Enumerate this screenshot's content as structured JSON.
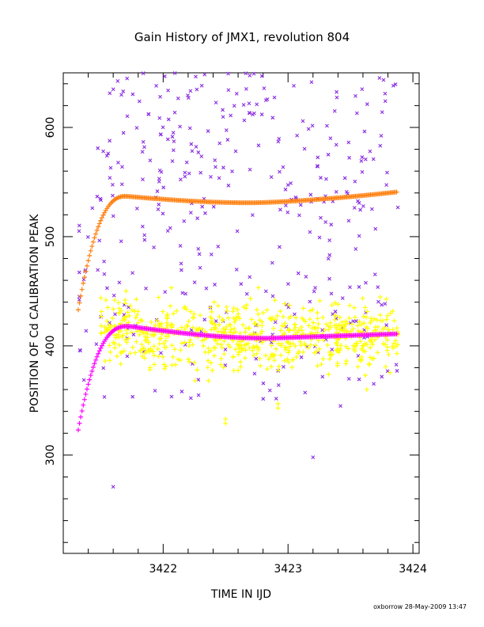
{
  "chart_data": {
    "type": "scatter",
    "title": "Gain History of JMX1, revolution 804",
    "xlabel": "TIME IN IJD",
    "ylabel": "POSITION OF Cd CALIBRATION PEAK",
    "credit": "oxborrow 28-May-2009 13:47",
    "xlim": [
      3421.2,
      3424.05
    ],
    "ylim": [
      210,
      650
    ],
    "x_ticks": [
      3422,
      3423,
      3424
    ],
    "x_tick_labels": [
      "3422",
      "3423",
      "3424"
    ],
    "y_ticks": [
      300,
      400,
      500,
      600
    ],
    "y_tick_labels": [
      "300",
      "400",
      "500",
      "600"
    ],
    "grid": false,
    "colors": {
      "orange_fit": "#ff7f0e",
      "magenta_fit": "#ff00ff",
      "yellow_points": "#ffff00",
      "purple_points": "#8a2be2"
    },
    "series": [
      {
        "marker": "plus",
        "color": "#ff7f0e",
        "fit": "upper",
        "x_range": [
          3421.32,
          3423.88
        ]
      },
      {
        "marker": "plus",
        "color": "#ff00ff",
        "fit": "lower",
        "x_range": [
          3421.32,
          3423.88
        ]
      },
      {
        "marker": "plus",
        "color": "#ffff00",
        "scatter": "yellow",
        "x_range": [
          3421.5,
          3423.88
        ],
        "center": 410,
        "spread": 20,
        "count": 700
      },
      {
        "marker": "cross",
        "color": "#8a2be2",
        "scatter": "purple",
        "x_range": [
          3421.32,
          3423.88
        ],
        "count": 380,
        "y_range": [
          265,
          650
        ]
      }
    ]
  }
}
